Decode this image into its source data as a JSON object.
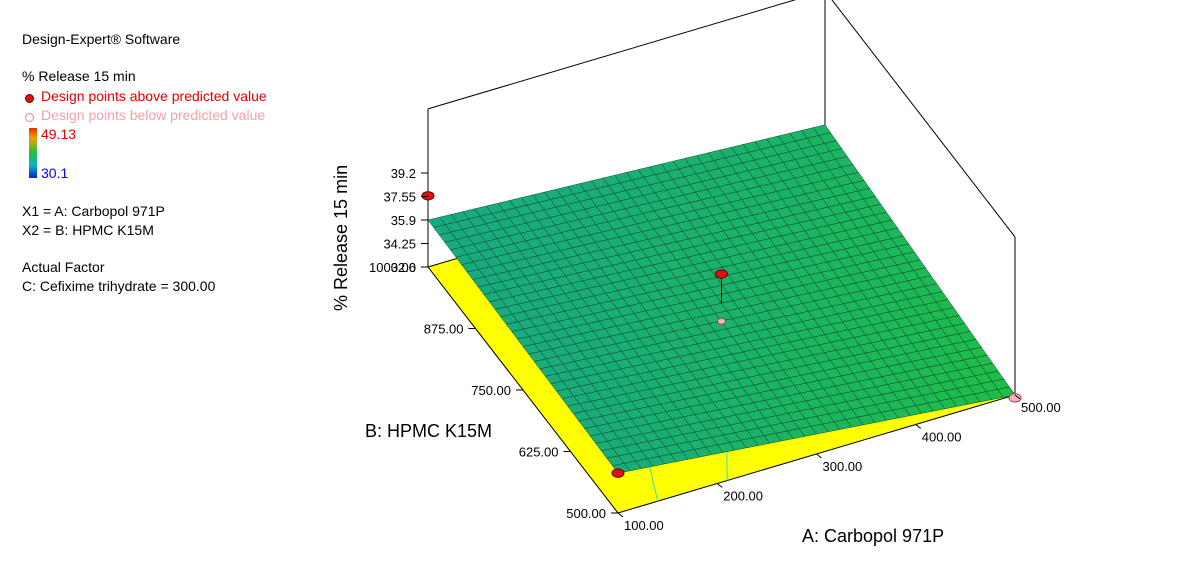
{
  "info": {
    "software": "Design-Expert® Software",
    "response": "% Release 15 min",
    "legend_above": "Design points above predicted value",
    "legend_below": "Design points below predicted value",
    "color_max": "49.13",
    "color_min": "30.1",
    "x1": "X1 = A: Carbopol 971P",
    "x2": "X2 = B: HPMC K15M",
    "actual_factor_heading": "Actual Factor",
    "actual_factor": "C: Cefixime trihydrate = 300.00"
  },
  "colors": {
    "above": "#e01010",
    "below": "#f6b6bc",
    "floor": "#ffff00",
    "grad_high": "#e03000",
    "grad_mid": "#20c040",
    "grad_low": "#0020e0"
  },
  "chart_data": {
    "type": "surface",
    "title": "",
    "xlabel": "A: Carbopol 971P",
    "ylabel": "B: HPMC K15M",
    "zlabel": "% Release 15 min",
    "x_ticks": [
      "100.00",
      "200.00",
      "300.00",
      "400.00",
      "500.00"
    ],
    "y_ticks": [
      "500.00",
      "625.00",
      "750.00",
      "875.00",
      "1000.00"
    ],
    "z_ticks": [
      "32.6",
      "34.25",
      "35.9",
      "37.55",
      "39.2"
    ],
    "xlim": [
      100,
      500
    ],
    "ylim": [
      500,
      1000
    ],
    "zlim": [
      32.6,
      39.2
    ],
    "surface_corners": [
      {
        "x": 100,
        "y": 500,
        "z": 35.4
      },
      {
        "x": 500,
        "y": 500,
        "z": 32.6
      },
      {
        "x": 100,
        "y": 1000,
        "z": 35.9
      },
      {
        "x": 500,
        "y": 1000,
        "z": 34.3
      }
    ],
    "design_points": [
      {
        "x": 100,
        "y": 1000,
        "z": 37.6,
        "type": "above"
      },
      {
        "x": 300,
        "y": 750,
        "z": 36.6,
        "type": "above"
      },
      {
        "x": 100,
        "y": 500,
        "z": 35.4,
        "type": "above"
      },
      {
        "x": 500,
        "y": 500,
        "z": 32.4,
        "type": "below"
      }
    ]
  }
}
